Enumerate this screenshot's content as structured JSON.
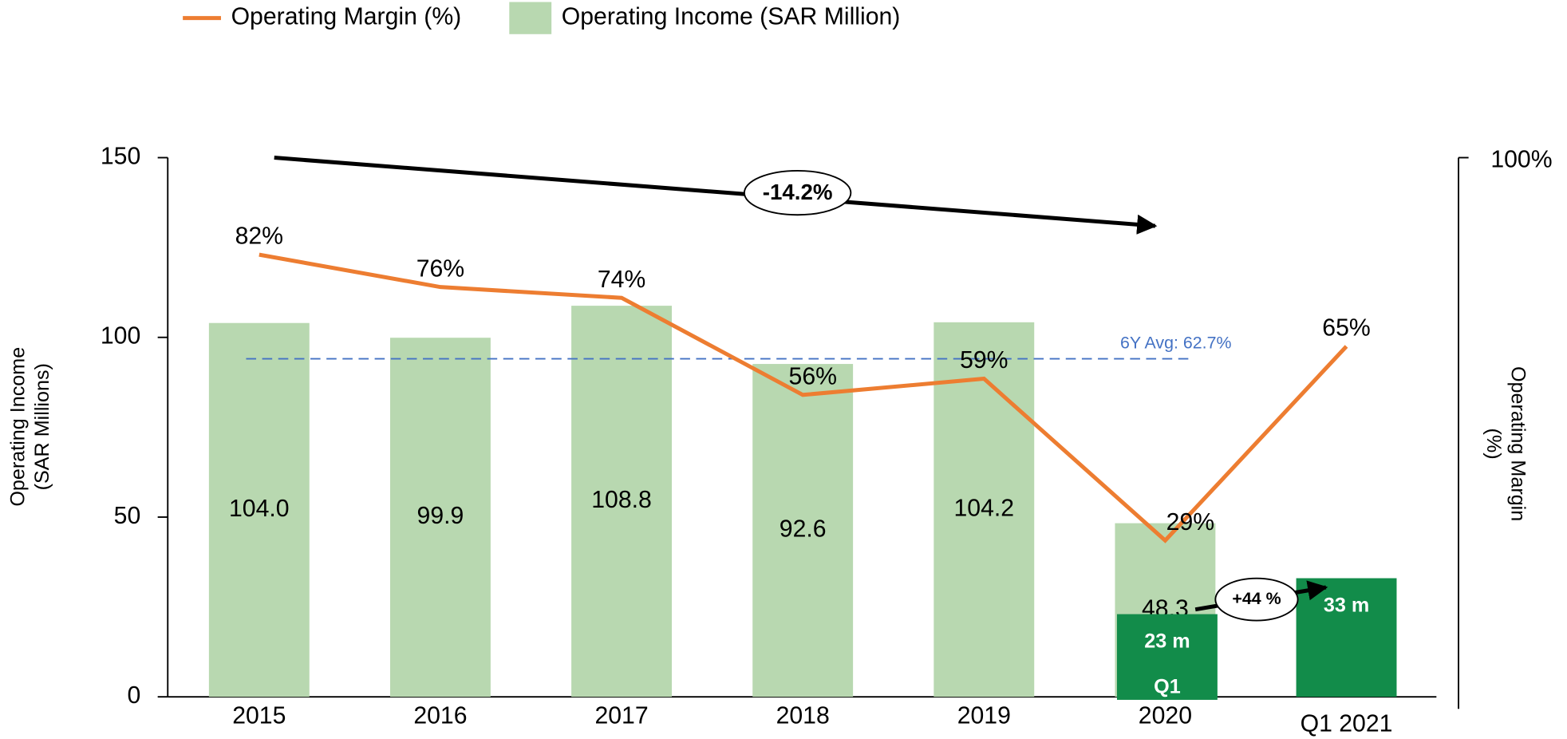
{
  "chart_data": {
    "type": "bar",
    "categories": [
      "2015",
      "2016",
      "2017",
      "2018",
      "2019",
      "2020",
      "Q1 2021"
    ],
    "ylabel": [
      "Operating Income",
      "(SAR Millions)"
    ],
    "y2label": [
      "Operating  Margin",
      "(%)"
    ],
    "ylim": [
      0,
      150
    ],
    "yticks": [
      0,
      50,
      100,
      150
    ],
    "y2lim": [
      0,
      100
    ],
    "y2ticks": [
      {
        "value": 100,
        "label": "100%"
      }
    ],
    "series": [
      {
        "name": "Operating Income (SAR Million)",
        "type": "bar",
        "color": "#b8d8b0",
        "values": [
          104.0,
          99.9,
          108.8,
          92.6,
          104.2,
          48.3,
          null
        ],
        "value_labels": [
          "104.0",
          "99.9",
          "108.8",
          "92.6",
          "104.2",
          "48.3",
          null
        ]
      },
      {
        "name": "Operating Margin (%)",
        "type": "line",
        "axis": "y2",
        "color": "#ed7d31",
        "values": [
          82,
          76,
          74,
          56,
          59,
          29,
          65
        ],
        "value_labels": [
          "82%",
          "76%",
          "74%",
          "56%",
          "59%",
          "29%",
          "65%"
        ]
      }
    ],
    "q1_bars": {
      "label": "Q1",
      "color": "#128c4a",
      "values": [
        null,
        null,
        null,
        null,
        null,
        23,
        33
      ],
      "value_labels": [
        null,
        null,
        null,
        null,
        null,
        "23 m",
        "33 m"
      ]
    },
    "average": {
      "value": 62.7,
      "label": "6Y Avg: 62.7%",
      "axis": "y2",
      "color": "#4472c4"
    },
    "annotations": [
      {
        "text": "-14.2%"
      },
      {
        "text": "+44 %"
      }
    ]
  }
}
